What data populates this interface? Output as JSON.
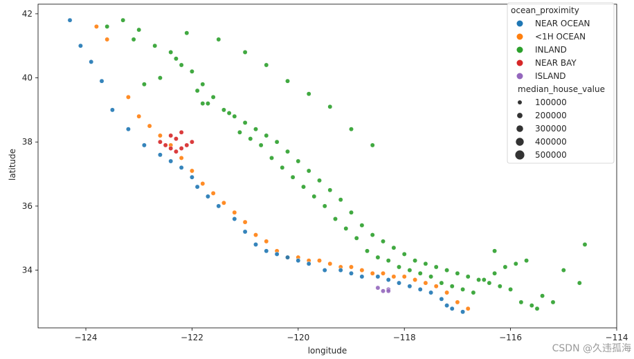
{
  "chart_data": {
    "type": "scatter",
    "title": "",
    "xlabel": "longitude",
    "ylabel": "latitude",
    "xlim": [
      -124.9,
      -114.0
    ],
    "ylim": [
      32.2,
      42.3
    ],
    "x_ticks": [
      -124,
      -122,
      -120,
      -118,
      -116,
      -114
    ],
    "y_ticks": [
      34,
      36,
      38,
      40,
      42
    ],
    "grid": false,
    "legend_position": "top-right",
    "hue_title": "ocean_proximity",
    "size_title": "median_house_value",
    "categories": [
      {
        "name": "NEAR OCEAN",
        "color": "#1f77b4"
      },
      {
        "name": "<1H OCEAN",
        "color": "#ff7f0e"
      },
      {
        "name": "INLAND",
        "color": "#2ca02c"
      },
      {
        "name": "NEAR BAY",
        "color": "#d62728"
      },
      {
        "name": "ISLAND",
        "color": "#9467bd"
      }
    ],
    "size_legend": [
      100000,
      200000,
      300000,
      400000,
      500000
    ],
    "series": [
      {
        "name": "INLAND",
        "color": "#2ca02c",
        "x": [
          -123.6,
          -123.3,
          -123.0,
          -122.7,
          -122.3,
          -122.0,
          -121.8,
          -121.6,
          -121.4,
          -121.2,
          -121.0,
          -120.8,
          -120.6,
          -120.4,
          -120.2,
          -120.0,
          -119.8,
          -119.6,
          -119.4,
          -119.2,
          -119.0,
          -118.8,
          -118.6,
          -118.4,
          -118.2,
          -118.0,
          -117.8,
          -117.6,
          -117.4,
          -117.2,
          -117.0,
          -116.8,
          -116.6,
          -116.4,
          -116.2,
          -116.0,
          -115.8,
          -115.6,
          -115.5,
          -115.0,
          -114.7,
          -114.6,
          -122.4,
          -122.2,
          -121.9,
          -121.7,
          -121.3,
          -121.1,
          -120.9,
          -120.7,
          -120.5,
          -120.3,
          -120.1,
          -119.9,
          -119.7,
          -119.5,
          -119.3,
          -119.1,
          -118.9,
          -118.7,
          -118.5,
          -118.3,
          -118.1,
          -117.9,
          -117.7,
          -117.5,
          -117.3,
          -117.1,
          -116.9,
          -116.7,
          -116.5,
          -116.3,
          -116.1,
          -115.9,
          -115.7,
          -115.4,
          -115.2,
          -116.3,
          -121.5,
          -122.1,
          -121.8,
          -122.6,
          -123.1,
          -122.9,
          -121.0,
          -120.6,
          -120.2,
          -119.8,
          -119.4,
          -119.0,
          -118.6
        ],
        "y": [
          41.6,
          41.8,
          41.5,
          41.0,
          40.6,
          40.2,
          39.8,
          39.4,
          39.0,
          38.8,
          38.6,
          38.4,
          38.2,
          38.0,
          37.7,
          37.4,
          37.1,
          36.8,
          36.5,
          36.2,
          35.8,
          35.4,
          35.1,
          34.9,
          34.7,
          34.5,
          34.3,
          34.2,
          34.1,
          34.0,
          33.9,
          33.8,
          33.7,
          33.6,
          33.5,
          33.4,
          33.0,
          32.9,
          32.8,
          34.0,
          33.6,
          34.8,
          40.8,
          40.4,
          39.6,
          39.2,
          38.9,
          38.3,
          38.1,
          37.9,
          37.5,
          37.2,
          36.9,
          36.6,
          36.3,
          36.0,
          35.6,
          35.3,
          35.0,
          34.6,
          34.4,
          34.3,
          34.1,
          34.0,
          33.9,
          33.8,
          33.6,
          33.5,
          33.4,
          33.3,
          33.7,
          33.9,
          34.1,
          34.2,
          34.3,
          33.2,
          33.0,
          34.6,
          41.2,
          41.4,
          39.2,
          40.0,
          41.2,
          39.8,
          40.8,
          40.4,
          39.9,
          39.5,
          39.1,
          38.4,
          37.9
        ]
      },
      {
        "name": "<1H OCEAN",
        "color": "#ff7f0e",
        "x": [
          -123.8,
          -123.6,
          -123.2,
          -123.0,
          -122.8,
          -122.6,
          -122.4,
          -122.2,
          -122.0,
          -121.8,
          -121.6,
          -121.4,
          -121.2,
          -121.0,
          -120.8,
          -120.6,
          -120.4,
          -120.2,
          -120.0,
          -119.8,
          -119.6,
          -119.4,
          -119.2,
          -119.0,
          -118.8,
          -118.6,
          -118.4,
          -118.2,
          -118.0,
          -117.8,
          -117.6,
          -117.4,
          -117.2,
          -117.0,
          -116.8
        ],
        "y": [
          41.6,
          41.2,
          39.4,
          38.8,
          38.5,
          38.2,
          37.9,
          37.5,
          37.1,
          36.7,
          36.4,
          36.1,
          35.8,
          35.5,
          35.1,
          34.9,
          34.6,
          34.4,
          34.4,
          34.3,
          34.3,
          34.2,
          34.1,
          34.1,
          34.0,
          33.9,
          33.9,
          33.8,
          33.8,
          33.7,
          33.6,
          33.5,
          33.3,
          33.0,
          32.8
        ]
      },
      {
        "name": "NEAR OCEAN",
        "color": "#1f77b4",
        "x": [
          -124.3,
          -124.1,
          -123.9,
          -123.7,
          -123.5,
          -123.2,
          -122.9,
          -122.6,
          -122.4,
          -122.2,
          -122.0,
          -121.9,
          -121.7,
          -121.5,
          -121.2,
          -121.0,
          -120.8,
          -120.6,
          -120.4,
          -120.2,
          -120.0,
          -119.8,
          -119.5,
          -119.2,
          -119.0,
          -118.8,
          -118.5,
          -118.3,
          -118.1,
          -117.9,
          -117.7,
          -117.5,
          -117.3,
          -117.2,
          -117.1,
          -116.9
        ],
        "y": [
          41.8,
          41.0,
          40.5,
          39.9,
          39.0,
          38.4,
          37.9,
          37.6,
          37.4,
          37.2,
          36.9,
          36.6,
          36.3,
          36.0,
          35.6,
          35.2,
          34.8,
          34.6,
          34.5,
          34.4,
          34.3,
          34.2,
          34.0,
          34.0,
          33.9,
          33.8,
          33.8,
          33.7,
          33.6,
          33.5,
          33.4,
          33.3,
          33.1,
          32.9,
          32.8,
          32.7
        ]
      },
      {
        "name": "NEAR BAY",
        "color": "#d62728",
        "x": [
          -122.6,
          -122.5,
          -122.4,
          -122.3,
          -122.2,
          -122.1,
          -122.0,
          -122.3,
          -122.2,
          -122.4
        ],
        "y": [
          38.0,
          37.9,
          38.2,
          38.1,
          37.8,
          37.9,
          38.0,
          37.7,
          38.3,
          37.8
        ]
      },
      {
        "name": "ISLAND",
        "color": "#9467bd",
        "x": [
          -118.5,
          -118.4,
          -118.3,
          -118.3
        ],
        "y": [
          33.45,
          33.35,
          33.4,
          33.35
        ]
      }
    ]
  },
  "watermark": "CSDN @久违孤海"
}
